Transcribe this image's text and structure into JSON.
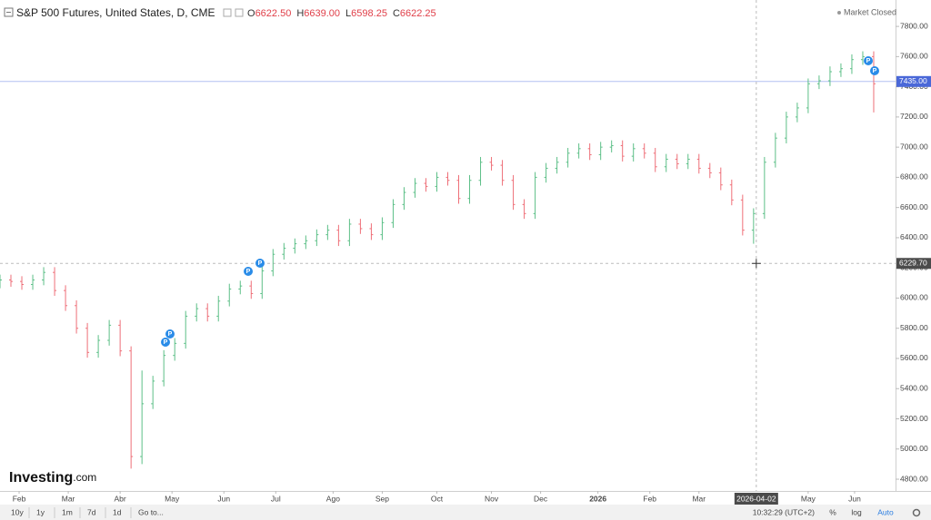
{
  "chart_data": {
    "type": "ohlc",
    "title": "S&P 500 Futures, United States, D, CME",
    "ohlc_legend": [
      {
        "key": "O",
        "text": "6622.50"
      },
      {
        "key": "H",
        "text": "6639.00"
      },
      {
        "key": "L",
        "text": "6598.25"
      },
      {
        "key": "C",
        "text": "6622.25"
      }
    ],
    "status": "Market Closed",
    "logo": {
      "brand": "Investing",
      "suffix": ".com"
    },
    "up_color": "#5cbf87",
    "down_color": "#ee6f78",
    "x": [
      0,
      4,
      8,
      12,
      16,
      20,
      24,
      28,
      32,
      36,
      40,
      44,
      48,
      52,
      56,
      60,
      64,
      68,
      72,
      76,
      80,
      84,
      88,
      92,
      96,
      100,
      104,
      108,
      112,
      116,
      120,
      124,
      128,
      132,
      136,
      140,
      144,
      148,
      152,
      156,
      160,
      164,
      168,
      172,
      176,
      180,
      184,
      188,
      192,
      196,
      200,
      204,
      208,
      212,
      216,
      220,
      224,
      228,
      232,
      236,
      240,
      244,
      248,
      252,
      256,
      260,
      264,
      268,
      272,
      276,
      280,
      284,
      288,
      292,
      296,
      300,
      304,
      308,
      312,
      316,
      320
    ],
    "open": [
      6100,
      6120,
      6110,
      6090,
      6120,
      6170,
      6050,
      5950,
      5800,
      5640,
      5720,
      5820,
      5650,
      4950,
      5300,
      5450,
      5620,
      5700,
      5880,
      5930,
      5880,
      5980,
      6060,
      6080,
      6030,
      6180,
      6290,
      6330,
      6360,
      6380,
      6420,
      6450,
      6380,
      6490,
      6460,
      6420,
      6500,
      6620,
      6700,
      6760,
      6740,
      6800,
      6780,
      6660,
      6780,
      6900,
      6880,
      6780,
      6620,
      6560,
      6800,
      6860,
      6900,
      6960,
      6990,
      6950,
      7000,
      7010,
      6940,
      6990,
      6960,
      6870,
      6920,
      6890,
      6920,
      6860,
      6830,
      6750,
      6650,
      6450,
      6560,
      6900,
      7060,
      7200,
      7260,
      7420,
      7440,
      7500,
      7520,
      7580,
      7600
    ],
    "high": [
      6155,
      6155,
      6145,
      6155,
      6205,
      6205,
      6085,
      5985,
      5835,
      5755,
      5855,
      5855,
      5680,
      5520,
      5485,
      5655,
      5735,
      5915,
      5965,
      5965,
      6015,
      6095,
      6115,
      6115,
      6215,
      6325,
      6365,
      6395,
      6415,
      6455,
      6485,
      6485,
      6525,
      6525,
      6495,
      6535,
      6655,
      6735,
      6795,
      6795,
      6835,
      6835,
      6815,
      6815,
      6935,
      6935,
      6915,
      6815,
      6655,
      6835,
      6895,
      6935,
      6995,
      7025,
      7025,
      7035,
      7045,
      7045,
      7025,
      7025,
      6995,
      6955,
      6955,
      6955,
      6955,
      6895,
      6865,
      6785,
      6685,
      6595,
      6935,
      7095,
      7235,
      7295,
      7455,
      7475,
      7535,
      7555,
      7615,
      7635,
      7635
    ],
    "low": [
      6065,
      6075,
      6055,
      6055,
      6085,
      6015,
      5915,
      5765,
      5605,
      5605,
      5685,
      5615,
      4870,
      4900,
      5265,
      5415,
      5585,
      5665,
      5845,
      5845,
      5845,
      5945,
      6025,
      5995,
      5995,
      6145,
      6255,
      6295,
      6325,
      6345,
      6385,
      6345,
      6345,
      6425,
      6385,
      6385,
      6465,
      6585,
      6665,
      6705,
      6705,
      6745,
      6625,
      6625,
      6745,
      6845,
      6745,
      6585,
      6525,
      6525,
      6765,
      6825,
      6865,
      6925,
      6915,
      6915,
      6965,
      6905,
      6905,
      6925,
      6835,
      6835,
      6855,
      6855,
      6825,
      6795,
      6715,
      6615,
      6415,
      6360,
      6525,
      6865,
      7025,
      7165,
      7225,
      7385,
      7405,
      7465,
      7485,
      7545,
      7230
    ],
    "close": [
      6120,
      6110,
      6090,
      6120,
      6170,
      6050,
      5950,
      5800,
      5640,
      5720,
      5820,
      5650,
      4950,
      5300,
      5450,
      5620,
      5700,
      5880,
      5930,
      5880,
      5980,
      6060,
      6080,
      6030,
      6180,
      6290,
      6330,
      6360,
      6380,
      6420,
      6450,
      6380,
      6490,
      6460,
      6420,
      6500,
      6620,
      6700,
      6760,
      6740,
      6800,
      6780,
      6660,
      6780,
      6900,
      6880,
      6780,
      6620,
      6560,
      6800,
      6860,
      6900,
      6960,
      6990,
      6950,
      7000,
      7010,
      6940,
      6990,
      6960,
      6870,
      6920,
      6890,
      6920,
      6860,
      6830,
      6750,
      6650,
      6450,
      6560,
      6900,
      7060,
      7200,
      7260,
      7420,
      7440,
      7500,
      7520,
      7580,
      7600,
      7420
    ],
    "xlim": [
      0,
      328
    ],
    "ylim": [
      4722,
      7975
    ],
    "xticks": [
      {
        "value": 7,
        "label": "Feb"
      },
      {
        "value": 25,
        "label": "Mar"
      },
      {
        "value": 44,
        "label": "Abr"
      },
      {
        "value": 63,
        "label": "May"
      },
      {
        "value": 82,
        "label": "Jun"
      },
      {
        "value": 101,
        "label": "Jul"
      },
      {
        "value": 122,
        "label": "Ago"
      },
      {
        "value": 140,
        "label": "Sep"
      },
      {
        "value": 160,
        "label": "Oct"
      },
      {
        "value": 180,
        "label": "Nov"
      },
      {
        "value": 198,
        "label": "Dec"
      },
      {
        "value": 219,
        "label": "2026"
      },
      {
        "value": 238,
        "label": "Feb"
      },
      {
        "value": 256,
        "label": "Mar"
      },
      {
        "value": 296,
        "label": "May"
      },
      {
        "value": 313,
        "label": "Jun"
      }
    ],
    "yticks": [
      {
        "value": 4800,
        "label": "4800.00"
      },
      {
        "value": 5000,
        "label": "5000.00"
      },
      {
        "value": 5200,
        "label": "5200.00"
      },
      {
        "value": 5400,
        "label": "5400.00"
      },
      {
        "value": 5600,
        "label": "5600.00"
      },
      {
        "value": 5800,
        "label": "5800.00"
      },
      {
        "value": 6000,
        "label": "6000.00"
      },
      {
        "value": 6200,
        "label": "6200.00"
      },
      {
        "value": 6400,
        "label": "6400.00"
      },
      {
        "value": 6600,
        "label": "6600.00"
      },
      {
        "value": 6800,
        "label": "6800.00"
      },
      {
        "value": 7000,
        "label": "7000.00"
      },
      {
        "value": 7200,
        "label": "7200.00"
      },
      {
        "value": 7400,
        "label": "7400.00"
      },
      {
        "value": 7600,
        "label": "7600.00"
      },
      {
        "value": 7800,
        "label": "7800.00"
      }
    ],
    "price_line": {
      "value": 7435,
      "label": "7435.00"
    },
    "crosshair": {
      "x": {
        "value": 277,
        "label": "2026-04-02"
      },
      "y": {
        "value": 6229.7,
        "label": "6229.70"
      }
    },
    "toolbar": {
      "ranges": [
        "10y",
        "1y",
        "1m",
        "7d",
        "1d"
      ],
      "goto": "Go to...",
      "clock": "10:32:29 (UTC+2)",
      "options": [
        "%",
        "log",
        "Auto"
      ]
    }
  }
}
